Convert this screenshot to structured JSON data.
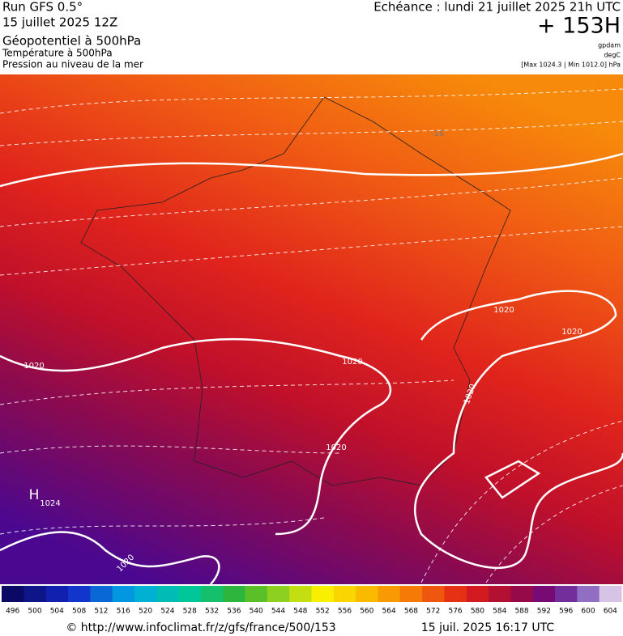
{
  "header": {
    "left": [
      "Run GFS 0.5°",
      "15 juillet 2025 12Z",
      "Géopotentiel à 500hPa",
      "Température à 500hPa",
      "Pression au niveau de la mer"
    ],
    "right": {
      "echeance": "Echéance : lundi 21 juillet 2025 21h UTC",
      "hour": "+ 153H",
      "units": [
        "gpdam",
        "degC",
        "[Max 1024.3 | Min 1012.0] hPa"
      ]
    }
  },
  "map": {
    "labels": [
      "1020",
      "1020",
      "1020",
      "1020",
      "1020",
      "1020",
      "1020",
      "H",
      "1024",
      "-16"
    ]
  },
  "colorbar": {
    "labels": [
      496,
      500,
      504,
      508,
      512,
      516,
      520,
      524,
      528,
      532,
      536,
      540,
      544,
      548,
      552,
      556,
      560,
      564,
      568,
      572,
      576,
      580,
      584,
      588,
      592,
      596,
      600,
      604
    ]
  },
  "footer": {
    "url": "© http://www.infoclimat.fr/z/gfs/france/500/153",
    "date": "15 juil. 2025 16:17 UTC"
  }
}
